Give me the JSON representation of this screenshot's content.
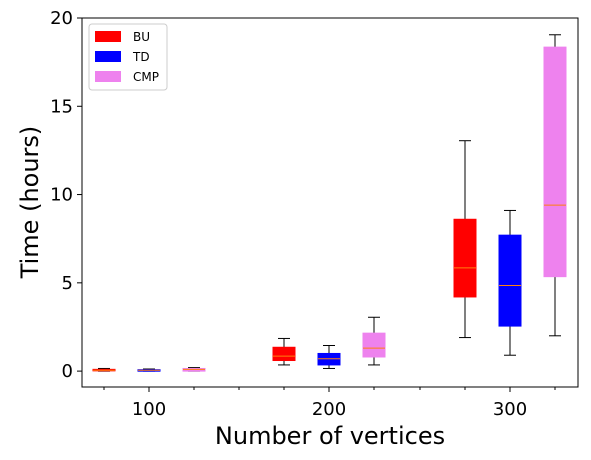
{
  "chart_data": {
    "type": "box",
    "xlabel": "Number of vertices",
    "ylabel": "Time (hours)",
    "ylim": [
      -0.9,
      20
    ],
    "yticks": [
      0,
      5,
      10,
      15,
      20
    ],
    "categories": [
      "100",
      "200",
      "300"
    ],
    "legend_position": "top-left",
    "grid": false,
    "median_color": "#ff7f0e",
    "series": [
      {
        "name": "BU",
        "color": "#ff0000",
        "boxes": [
          {
            "whisker_low": 0.0,
            "q1": 0.02,
            "median": 0.05,
            "q3": 0.1,
            "whisker_high": 0.15
          },
          {
            "whisker_low": 0.35,
            "q1": 0.6,
            "median": 0.85,
            "q3": 1.35,
            "whisker_high": 1.85
          },
          {
            "whisker_low": 1.9,
            "q1": 4.2,
            "median": 5.85,
            "q3": 8.6,
            "whisker_high": 13.05
          }
        ]
      },
      {
        "name": "TD",
        "color": "#0000ff",
        "boxes": [
          {
            "whisker_low": 0.0,
            "q1": 0.0,
            "median": 0.05,
            "q3": 0.08,
            "whisker_high": 0.12
          },
          {
            "whisker_low": 0.15,
            "q1": 0.35,
            "median": 0.7,
            "q3": 1.0,
            "whisker_high": 1.45
          },
          {
            "whisker_low": 0.9,
            "q1": 2.55,
            "median": 4.85,
            "q3": 7.7,
            "whisker_high": 9.1
          }
        ]
      },
      {
        "name": "CMP",
        "color": "#ee82ee",
        "boxes": [
          {
            "whisker_low": 0.0,
            "q1": 0.0,
            "median": 0.1,
            "q3": 0.15,
            "whisker_high": 0.2
          },
          {
            "whisker_low": 0.35,
            "q1": 0.8,
            "median": 1.3,
            "q3": 2.15,
            "whisker_high": 3.05
          },
          {
            "whisker_low": 2.0,
            "q1": 5.35,
            "median": 9.4,
            "q3": 18.35,
            "whisker_high": 19.05
          }
        ]
      }
    ]
  }
}
